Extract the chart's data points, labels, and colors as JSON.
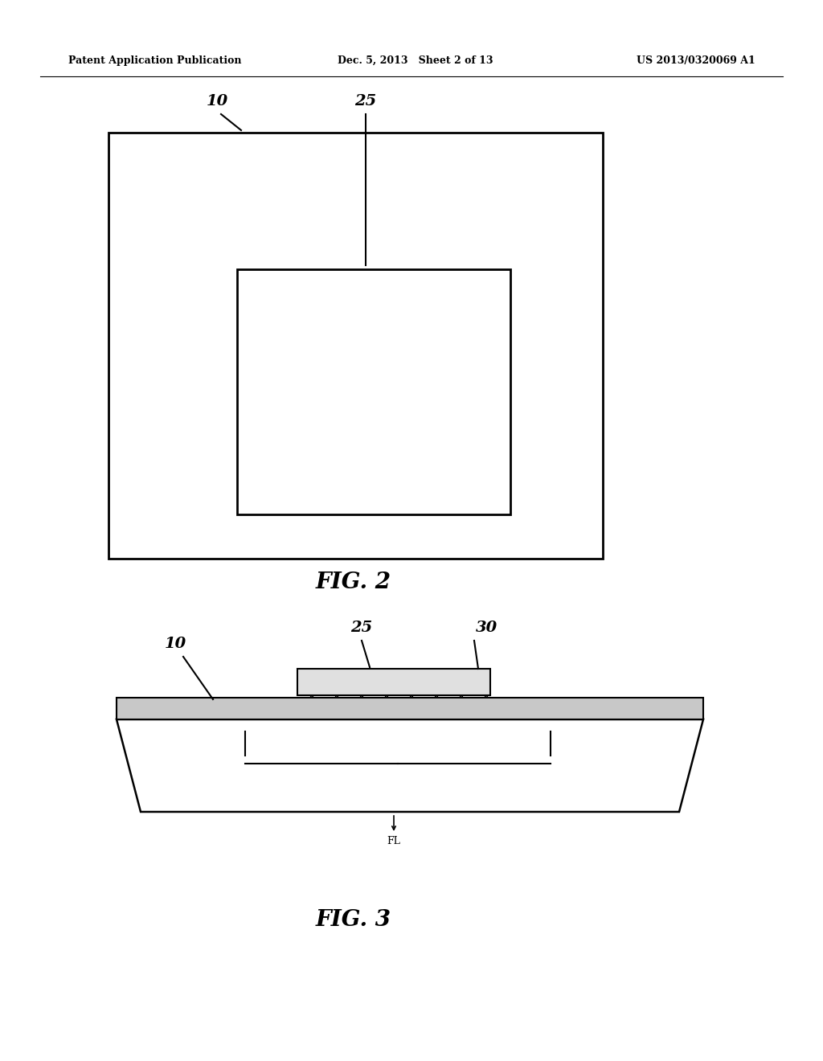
{
  "header_left": "Patent Application Publication",
  "header_mid": "Dec. 5, 2013   Sheet 2 of 13",
  "header_right": "US 2013/0320069 A1",
  "fig2_title": "FIG. 2",
  "fig3_title": "FIG. 3",
  "background_color": "#ffffff",
  "line_color": "#000000"
}
